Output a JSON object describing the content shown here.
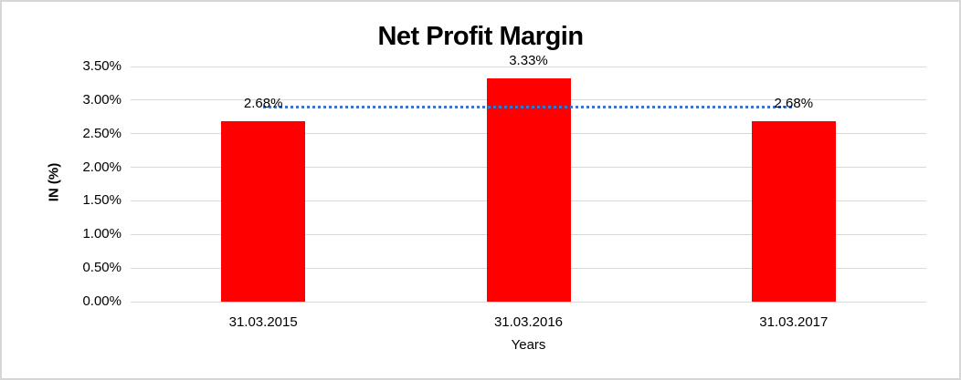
{
  "chart_data": {
    "type": "bar",
    "title": "Net Profit Margin",
    "categories": [
      "31.03.2015",
      "31.03.2016",
      "31.03.2017"
    ],
    "values": [
      2.68,
      3.33,
      2.68
    ],
    "data_labels": [
      "2.68%",
      "3.33%",
      "2.68%"
    ],
    "xlabel": "Years",
    "ylabel": "IN (%)",
    "ylim": [
      0,
      3.5
    ],
    "ytick_step": 0.5,
    "ytick_labels": [
      "0.00%",
      "0.50%",
      "1.00%",
      "1.50%",
      "2.00%",
      "2.50%",
      "3.00%",
      "3.50%"
    ],
    "grid": true,
    "legend": "none",
    "bar_color": "#FF0000",
    "gridline_color": "#D9D9D9",
    "text_color": "#000000",
    "trendline": {
      "value": 2.9,
      "color": "#4472C4",
      "style": "dotted"
    }
  }
}
